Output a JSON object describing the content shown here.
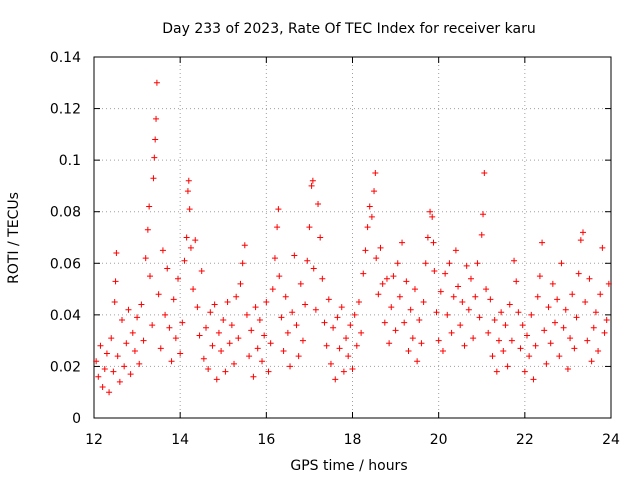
{
  "chart_data": {
    "type": "scatter",
    "title": "Day 233 of 2023, Rate Of TEC Index for receiver karu",
    "xlabel": "GPS time / hours",
    "ylabel": "ROTI / TECUs",
    "xlim": [
      12,
      24
    ],
    "ylim": [
      0,
      0.14
    ],
    "x_ticks": [
      12,
      14,
      16,
      18,
      20,
      22,
      24
    ],
    "y_ticks": [
      0,
      0.02,
      0.04,
      0.06,
      0.08,
      0.1,
      0.12,
      0.14
    ],
    "x_tick_labels": [
      "12",
      "14",
      "16",
      "18",
      "20",
      "22",
      "24"
    ],
    "y_tick_labels": [
      "0",
      "0.02",
      "0.04",
      "0.06",
      "0.08",
      "0.1",
      "0.12",
      "0.14"
    ],
    "grid": true,
    "legend": "none",
    "marker": "+",
    "color": "#ff0000",
    "series": [
      {
        "points": [
          [
            12.05,
            0.022
          ],
          [
            12.1,
            0.016
          ],
          [
            12.15,
            0.028
          ],
          [
            12.2,
            0.012
          ],
          [
            12.25,
            0.019
          ],
          [
            12.3,
            0.025
          ],
          [
            12.35,
            0.01
          ],
          [
            12.4,
            0.031
          ],
          [
            12.45,
            0.018
          ],
          [
            12.48,
            0.045
          ],
          [
            12.5,
            0.053
          ],
          [
            12.52,
            0.064
          ],
          [
            12.55,
            0.024
          ],
          [
            12.6,
            0.014
          ],
          [
            12.65,
            0.038
          ],
          [
            12.7,
            0.02
          ],
          [
            12.75,
            0.029
          ],
          [
            12.8,
            0.042
          ],
          [
            12.85,
            0.017
          ],
          [
            12.9,
            0.033
          ],
          [
            12.95,
            0.026
          ],
          [
            13.0,
            0.039
          ],
          [
            13.05,
            0.021
          ],
          [
            13.1,
            0.044
          ],
          [
            13.15,
            0.03
          ],
          [
            13.2,
            0.062
          ],
          [
            13.25,
            0.073
          ],
          [
            13.28,
            0.082
          ],
          [
            13.3,
            0.055
          ],
          [
            13.35,
            0.036
          ],
          [
            13.38,
            0.093
          ],
          [
            13.4,
            0.101
          ],
          [
            13.42,
            0.108
          ],
          [
            13.44,
            0.116
          ],
          [
            13.46,
            0.13
          ],
          [
            13.5,
            0.048
          ],
          [
            13.55,
            0.027
          ],
          [
            13.6,
            0.065
          ],
          [
            13.65,
            0.04
          ],
          [
            13.7,
            0.058
          ],
          [
            13.75,
            0.035
          ],
          [
            13.8,
            0.022
          ],
          [
            13.85,
            0.046
          ],
          [
            13.9,
            0.031
          ],
          [
            13.95,
            0.054
          ],
          [
            14.0,
            0.025
          ],
          [
            14.05,
            0.037
          ],
          [
            14.1,
            0.061
          ],
          [
            14.15,
            0.07
          ],
          [
            14.18,
            0.088
          ],
          [
            14.2,
            0.092
          ],
          [
            14.22,
            0.081
          ],
          [
            14.25,
            0.066
          ],
          [
            14.3,
            0.05
          ],
          [
            14.35,
            0.069
          ],
          [
            14.4,
            0.043
          ],
          [
            14.45,
            0.032
          ],
          [
            14.5,
            0.057
          ],
          [
            14.55,
            0.023
          ],
          [
            14.6,
            0.035
          ],
          [
            14.65,
            0.019
          ],
          [
            14.7,
            0.041
          ],
          [
            14.75,
            0.028
          ],
          [
            14.8,
            0.044
          ],
          [
            14.85,
            0.015
          ],
          [
            14.9,
            0.033
          ],
          [
            14.95,
            0.026
          ],
          [
            15.0,
            0.038
          ],
          [
            15.05,
            0.018
          ],
          [
            15.1,
            0.045
          ],
          [
            15.15,
            0.029
          ],
          [
            15.2,
            0.036
          ],
          [
            15.25,
            0.021
          ],
          [
            15.3,
            0.047
          ],
          [
            15.35,
            0.031
          ],
          [
            15.4,
            0.052
          ],
          [
            15.45,
            0.06
          ],
          [
            15.5,
            0.067
          ],
          [
            15.55,
            0.04
          ],
          [
            15.6,
            0.024
          ],
          [
            15.65,
            0.034
          ],
          [
            15.7,
            0.016
          ],
          [
            15.75,
            0.043
          ],
          [
            15.8,
            0.027
          ],
          [
            15.85,
            0.038
          ],
          [
            15.9,
            0.022
          ],
          [
            15.95,
            0.032
          ],
          [
            16.0,
            0.045
          ],
          [
            16.05,
            0.018
          ],
          [
            16.1,
            0.029
          ],
          [
            16.15,
            0.05
          ],
          [
            16.2,
            0.062
          ],
          [
            16.25,
            0.074
          ],
          [
            16.28,
            0.081
          ],
          [
            16.3,
            0.055
          ],
          [
            16.35,
            0.039
          ],
          [
            16.4,
            0.026
          ],
          [
            16.45,
            0.047
          ],
          [
            16.5,
            0.033
          ],
          [
            16.55,
            0.02
          ],
          [
            16.6,
            0.041
          ],
          [
            16.65,
            0.063
          ],
          [
            16.7,
            0.036
          ],
          [
            16.75,
            0.024
          ],
          [
            16.8,
            0.052
          ],
          [
            16.85,
            0.03
          ],
          [
            16.9,
            0.044
          ],
          [
            16.95,
            0.061
          ],
          [
            17.0,
            0.074
          ],
          [
            17.05,
            0.09
          ],
          [
            17.08,
            0.092
          ],
          [
            17.1,
            0.058
          ],
          [
            17.15,
            0.042
          ],
          [
            17.2,
            0.083
          ],
          [
            17.25,
            0.07
          ],
          [
            17.3,
            0.054
          ],
          [
            17.35,
            0.037
          ],
          [
            17.4,
            0.028
          ],
          [
            17.45,
            0.046
          ],
          [
            17.5,
            0.021
          ],
          [
            17.55,
            0.035
          ],
          [
            17.6,
            0.015
          ],
          [
            17.65,
            0.039
          ],
          [
            17.7,
            0.027
          ],
          [
            17.75,
            0.043
          ],
          [
            17.8,
            0.018
          ],
          [
            17.85,
            0.031
          ],
          [
            17.9,
            0.024
          ],
          [
            17.95,
            0.036
          ],
          [
            18.0,
            0.019
          ],
          [
            18.05,
            0.04
          ],
          [
            18.1,
            0.028
          ],
          [
            18.15,
            0.045
          ],
          [
            18.2,
            0.033
          ],
          [
            18.25,
            0.056
          ],
          [
            18.3,
            0.065
          ],
          [
            18.35,
            0.074
          ],
          [
            18.4,
            0.082
          ],
          [
            18.45,
            0.078
          ],
          [
            18.5,
            0.088
          ],
          [
            18.53,
            0.095
          ],
          [
            18.55,
            0.062
          ],
          [
            18.6,
            0.048
          ],
          [
            18.65,
            0.066
          ],
          [
            18.7,
            0.052
          ],
          [
            18.75,
            0.037
          ],
          [
            18.8,
            0.054
          ],
          [
            18.85,
            0.029
          ],
          [
            18.9,
            0.043
          ],
          [
            18.95,
            0.055
          ],
          [
            19.0,
            0.034
          ],
          [
            19.05,
            0.06
          ],
          [
            19.1,
            0.047
          ],
          [
            19.15,
            0.068
          ],
          [
            19.2,
            0.037
          ],
          [
            19.25,
            0.053
          ],
          [
            19.3,
            0.026
          ],
          [
            19.35,
            0.042
          ],
          [
            19.4,
            0.031
          ],
          [
            19.45,
            0.05
          ],
          [
            19.5,
            0.022
          ],
          [
            19.55,
            0.038
          ],
          [
            19.6,
            0.029
          ],
          [
            19.65,
            0.045
          ],
          [
            19.7,
            0.06
          ],
          [
            19.75,
            0.07
          ],
          [
            19.8,
            0.08
          ],
          [
            19.85,
            0.078
          ],
          [
            19.88,
            0.068
          ],
          [
            19.9,
            0.057
          ],
          [
            19.95,
            0.041
          ],
          [
            20.0,
            0.03
          ],
          [
            20.05,
            0.049
          ],
          [
            20.1,
            0.026
          ],
          [
            20.15,
            0.056
          ],
          [
            20.2,
            0.04
          ],
          [
            20.25,
            0.06
          ],
          [
            20.3,
            0.033
          ],
          [
            20.35,
            0.047
          ],
          [
            20.4,
            0.065
          ],
          [
            20.45,
            0.051
          ],
          [
            20.5,
            0.036
          ],
          [
            20.55,
            0.045
          ],
          [
            20.6,
            0.028
          ],
          [
            20.65,
            0.059
          ],
          [
            20.7,
            0.042
          ],
          [
            20.75,
            0.054
          ],
          [
            20.8,
            0.031
          ],
          [
            20.85,
            0.047
          ],
          [
            20.9,
            0.06
          ],
          [
            20.95,
            0.039
          ],
          [
            21.0,
            0.071
          ],
          [
            21.03,
            0.079
          ],
          [
            21.06,
            0.095
          ],
          [
            21.1,
            0.05
          ],
          [
            21.15,
            0.033
          ],
          [
            21.2,
            0.046
          ],
          [
            21.25,
            0.024
          ],
          [
            21.3,
            0.038
          ],
          [
            21.35,
            0.018
          ],
          [
            21.4,
            0.03
          ],
          [
            21.45,
            0.041
          ],
          [
            21.5,
            0.026
          ],
          [
            21.55,
            0.036
          ],
          [
            21.6,
            0.02
          ],
          [
            21.65,
            0.044
          ],
          [
            21.7,
            0.03
          ],
          [
            21.75,
            0.061
          ],
          [
            21.8,
            0.053
          ],
          [
            21.85,
            0.041
          ],
          [
            21.9,
            0.027
          ],
          [
            21.95,
            0.036
          ],
          [
            22.0,
            0.018
          ],
          [
            22.05,
            0.032
          ],
          [
            22.1,
            0.024
          ],
          [
            22.15,
            0.04
          ],
          [
            22.2,
            0.015
          ],
          [
            22.25,
            0.028
          ],
          [
            22.3,
            0.047
          ],
          [
            22.35,
            0.055
          ],
          [
            22.4,
            0.068
          ],
          [
            22.45,
            0.034
          ],
          [
            22.5,
            0.021
          ],
          [
            22.55,
            0.043
          ],
          [
            22.6,
            0.029
          ],
          [
            22.65,
            0.052
          ],
          [
            22.7,
            0.037
          ],
          [
            22.75,
            0.046
          ],
          [
            22.8,
            0.024
          ],
          [
            22.85,
            0.06
          ],
          [
            22.9,
            0.035
          ],
          [
            22.95,
            0.042
          ],
          [
            23.0,
            0.019
          ],
          [
            23.05,
            0.031
          ],
          [
            23.1,
            0.048
          ],
          [
            23.15,
            0.027
          ],
          [
            23.2,
            0.039
          ],
          [
            23.25,
            0.056
          ],
          [
            23.3,
            0.069
          ],
          [
            23.35,
            0.072
          ],
          [
            23.4,
            0.045
          ],
          [
            23.45,
            0.03
          ],
          [
            23.5,
            0.054
          ],
          [
            23.55,
            0.022
          ],
          [
            23.6,
            0.035
          ],
          [
            23.65,
            0.041
          ],
          [
            23.7,
            0.026
          ],
          [
            23.75,
            0.048
          ],
          [
            23.8,
            0.066
          ],
          [
            23.85,
            0.033
          ],
          [
            23.9,
            0.038
          ],
          [
            23.95,
            0.052
          ]
        ]
      }
    ]
  }
}
